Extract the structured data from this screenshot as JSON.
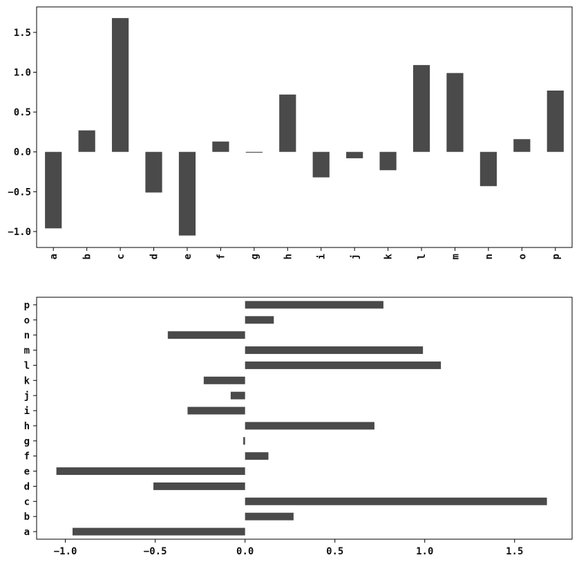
{
  "colors": {
    "bar": "#4a4a4a",
    "axis": "#000000",
    "background": "#ffffff"
  },
  "chart_data": [
    {
      "type": "bar",
      "orientation": "vertical",
      "categories": [
        "a",
        "b",
        "c",
        "d",
        "e",
        "f",
        "g",
        "h",
        "i",
        "j",
        "k",
        "l",
        "m",
        "n",
        "o",
        "p"
      ],
      "values": [
        -0.96,
        0.27,
        1.68,
        -0.51,
        -1.05,
        0.13,
        -0.01,
        0.72,
        -0.32,
        -0.08,
        -0.23,
        1.09,
        0.99,
        -0.43,
        0.16,
        0.77
      ],
      "ylim": [
        -1.2,
        1.82
      ],
      "yticks": [
        -1.0,
        -0.5,
        0.0,
        0.5,
        1.0,
        1.5
      ],
      "ytick_labels": [
        "−1.0",
        "−0.5",
        "0.0",
        "0.5",
        "1.0",
        "1.5"
      ],
      "title": "",
      "xlabel": "",
      "ylabel": "",
      "grid": false,
      "color": "#4a4a4a"
    },
    {
      "type": "bar",
      "orientation": "horizontal",
      "categories": [
        "a",
        "b",
        "c",
        "d",
        "e",
        "f",
        "g",
        "h",
        "i",
        "j",
        "k",
        "l",
        "m",
        "n",
        "o",
        "p"
      ],
      "values": [
        -0.96,
        0.27,
        1.68,
        -0.51,
        -1.05,
        0.13,
        -0.01,
        0.72,
        -0.32,
        -0.08,
        -0.23,
        1.09,
        0.99,
        -0.43,
        0.16,
        0.77
      ],
      "xlim": [
        -1.16,
        1.82
      ],
      "xticks": [
        -1.0,
        -0.5,
        0.0,
        0.5,
        1.0,
        1.5
      ],
      "xtick_labels": [
        "−1.0",
        "−0.5",
        "0.0",
        "0.5",
        "1.0",
        "1.5"
      ],
      "title": "",
      "xlabel": "",
      "ylabel": "",
      "grid": false,
      "color": "#4a4a4a"
    }
  ]
}
